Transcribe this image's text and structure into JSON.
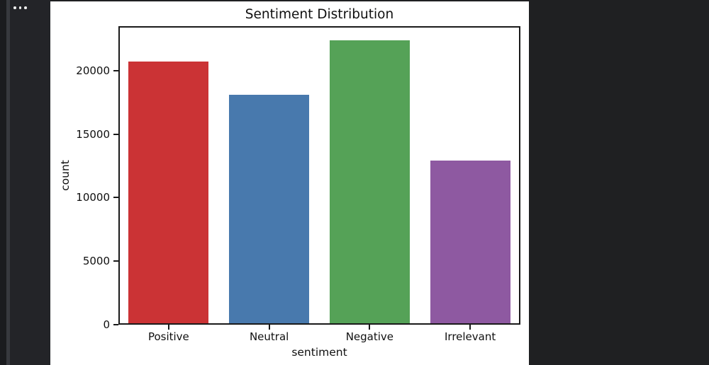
{
  "sidebar": {
    "menu_icon": "more-options-ellipsis"
  },
  "chart_data": {
    "type": "bar",
    "title": "Sentiment Distribution",
    "xlabel": "sentiment",
    "ylabel": "count",
    "categories": [
      "Positive",
      "Neutral",
      "Negative",
      "Irrelevant"
    ],
    "values": [
      20700,
      18100,
      22400,
      12900
    ],
    "bar_colors": [
      "#cb3335",
      "#4879ad",
      "#55a257",
      "#8e59a1"
    ],
    "ylim": [
      0,
      23500
    ],
    "yticks": [
      0,
      5000,
      10000,
      15000,
      20000
    ],
    "grid": false,
    "legend": "none",
    "background": "#ffffff",
    "spine_color": "#1a1a1a"
  }
}
